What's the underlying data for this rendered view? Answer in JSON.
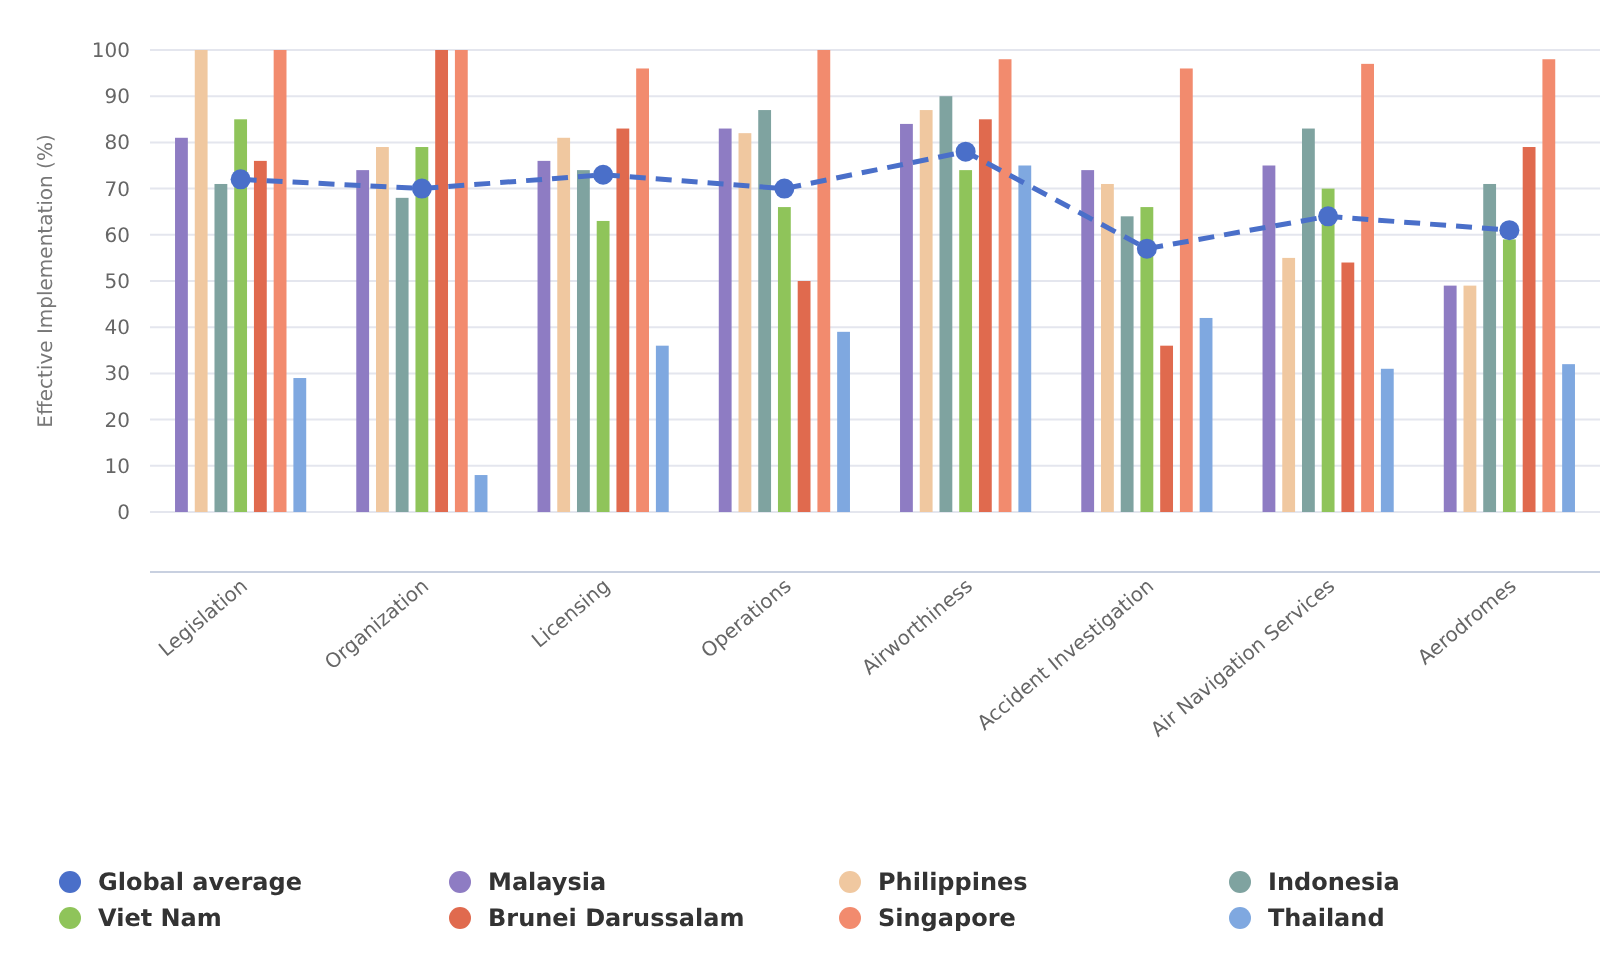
{
  "chart_data": {
    "type": "bar",
    "ylabel": "Effective Implementation (%)",
    "categories": [
      "Legislation",
      "Organization",
      "Licensing",
      "Operations",
      "Airworthiness",
      "Accident Investigation",
      "Air Navigation Services",
      "Aerodromes"
    ],
    "series": [
      {
        "name": "Global average",
        "type": "line",
        "color": "#4a6fc9",
        "marker": "circle",
        "line_style": "dashed",
        "values": [
          72,
          70,
          73,
          70,
          78,
          57,
          64,
          61
        ]
      },
      {
        "name": "Malaysia",
        "color": "#8e7cc3",
        "values": [
          81,
          74,
          76,
          83,
          84,
          74,
          75,
          49
        ]
      },
      {
        "name": "Philippines",
        "color": "#f0c8a0",
        "values": [
          100,
          79,
          81,
          82,
          87,
          71,
          55,
          49
        ]
      },
      {
        "name": "Indonesia",
        "color": "#7fa3a0",
        "values": [
          71,
          68,
          74,
          87,
          90,
          64,
          83,
          71
        ]
      },
      {
        "name": "Viet Nam",
        "color": "#8fc45a",
        "values": [
          85,
          79,
          63,
          66,
          74,
          66,
          70,
          59
        ]
      },
      {
        "name": "Brunei Darussalam",
        "color": "#e06a4e",
        "values": [
          76,
          100,
          83,
          50,
          85,
          36,
          54,
          79
        ]
      },
      {
        "name": "Singapore",
        "color": "#f28b6e",
        "values": [
          100,
          100,
          96,
          100,
          98,
          96,
          97,
          98
        ]
      },
      {
        "name": "Thailand",
        "color": "#7fa8e0",
        "values": [
          29,
          8,
          36,
          39,
          75,
          42,
          31,
          32
        ]
      }
    ],
    "ylim": [
      0,
      100
    ],
    "yticks": [
      0,
      10,
      20,
      30,
      40,
      50,
      60,
      70,
      80,
      90,
      100
    ],
    "grid": "y",
    "legend": "bottom"
  }
}
